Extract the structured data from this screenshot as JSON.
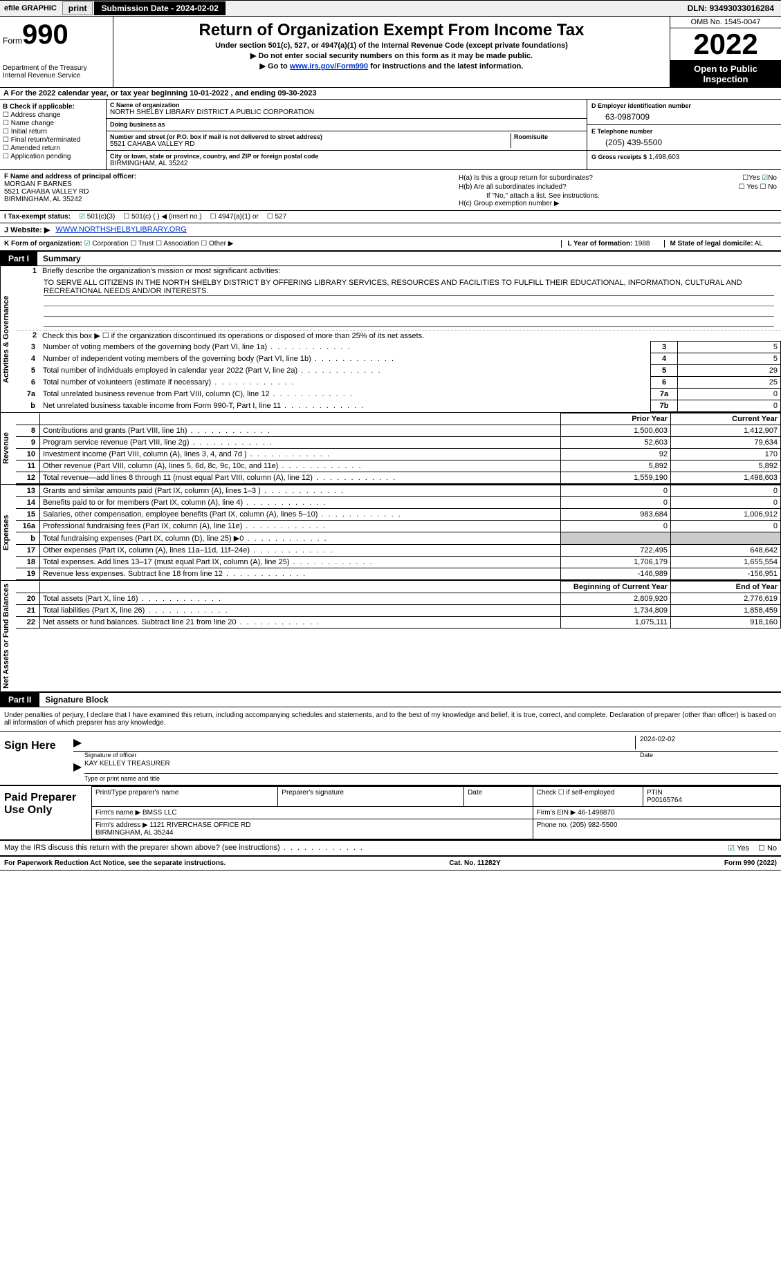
{
  "topbar": {
    "efile_label": "efile GRAPHIC",
    "print_btn": "print",
    "sub_date_label": "Submission Date - 2024-02-02",
    "dln": "DLN: 93493033016284"
  },
  "header": {
    "form_word": "Form",
    "form_number": "990",
    "dept": "Department of the Treasury\nInternal Revenue Service",
    "title": "Return of Organization Exempt From Income Tax",
    "subtitle": "Under section 501(c), 527, or 4947(a)(1) of the Internal Revenue Code (except private foundations)",
    "note1": "▶ Do not enter social security numbers on this form as it may be made public.",
    "note2_pre": "▶ Go to ",
    "note2_link": "www.irs.gov/Form990",
    "note2_post": " for instructions and the latest information.",
    "omb": "OMB No. 1545-0047",
    "year": "2022",
    "open_public": "Open to Public Inspection"
  },
  "row_a": "A For the 2022 calendar year, or tax year beginning 10-01-2022    , and ending 09-30-2023",
  "col_b": {
    "title": "B Check if applicable:",
    "items": [
      "Address change",
      "Name change",
      "Initial return",
      "Final return/terminated",
      "Amended return",
      "Application pending"
    ]
  },
  "col_c": {
    "name_label": "C Name of organization",
    "name": "NORTH SHELBY LIBRARY DISTRICT A PUBLIC CORPORATION",
    "dba_label": "Doing business as",
    "dba": "",
    "street_label": "Number and street (or P.O. box if mail is not delivered to street address)",
    "room_label": "Room/suite",
    "street": "5521 CAHABA VALLEY RD",
    "city_label": "City or town, state or province, country, and ZIP or foreign postal code",
    "city": "BIRMINGHAM, AL  35242"
  },
  "col_d": {
    "ein_label": "D Employer identification number",
    "ein": "63-0987009",
    "phone_label": "E Telephone number",
    "phone": "(205) 439-5500",
    "gross_label": "G Gross receipts $",
    "gross": "1,498,603"
  },
  "row_f": {
    "label": "F Name and address of principal officer:",
    "name": "MORGAN F BARNES",
    "street": "5521 CAHABA VALLEY RD",
    "city": "BIRMINGHAM, AL  35242"
  },
  "row_h": {
    "a_label": "H(a)  Is this a group return for subordinates?",
    "b_label": "H(b)  Are all subordinates included?",
    "b_note": "If \"No,\" attach a list. See instructions.",
    "c_label": "H(c)  Group exemption number ▶",
    "yes": "Yes",
    "no": "No"
  },
  "row_i": {
    "label": "I  Tax-exempt status:",
    "opt1": "501(c)(3)",
    "opt2": "501(c) (  ) ◀ (insert no.)",
    "opt3": "4947(a)(1) or",
    "opt4": "527"
  },
  "row_j": {
    "label": "J  Website: ▶",
    "url": "WWW.NORTHSHELBYLIBRARY.ORG"
  },
  "row_k": {
    "form_label": "K Form of organization:",
    "corp": "Corporation",
    "trust": "Trust",
    "assoc": "Association",
    "other": "Other ▶",
    "year_label": "L Year of formation:",
    "year": "1988",
    "state_label": "M State of legal domicile:",
    "state": "AL"
  },
  "part1": {
    "label": "Part I",
    "title": "Summary"
  },
  "summary": {
    "line1_label": "Briefly describe the organization's mission or most significant activities:",
    "mission": "TO SERVE ALL CITIZENS IN THE NORTH SHELBY DISTRICT BY OFFERING LIBRARY SERVICES, RESOURCES AND FACILITIES TO FULFILL THEIR EDUCATIONAL, INFORMATION, CULTURAL AND RECREATIONAL NEEDS AND/OR INTERESTS.",
    "line2": "Check this box ▶ ☐  if the organization discontinued its operations or disposed of more than 25% of its net assets.",
    "lines_3_7": [
      {
        "n": "3",
        "t": "Number of voting members of the governing body (Part VI, line 1a)",
        "box": "3",
        "v": "5"
      },
      {
        "n": "4",
        "t": "Number of independent voting members of the governing body (Part VI, line 1b)",
        "box": "4",
        "v": "5"
      },
      {
        "n": "5",
        "t": "Total number of individuals employed in calendar year 2022 (Part V, line 2a)",
        "box": "5",
        "v": "29"
      },
      {
        "n": "6",
        "t": "Total number of volunteers (estimate if necessary)",
        "box": "6",
        "v": "25"
      },
      {
        "n": "7a",
        "t": "Total unrelated business revenue from Part VIII, column (C), line 12",
        "box": "7a",
        "v": "0"
      },
      {
        "n": "b",
        "t": "Net unrelated business taxable income from Form 990-T, Part I, line 11",
        "box": "7b",
        "v": "0"
      }
    ],
    "col_prior": "Prior Year",
    "col_current": "Current Year",
    "revenue": [
      {
        "n": "8",
        "t": "Contributions and grants (Part VIII, line 1h)",
        "p": "1,500,603",
        "c": "1,412,907"
      },
      {
        "n": "9",
        "t": "Program service revenue (Part VIII, line 2g)",
        "p": "52,603",
        "c": "79,634"
      },
      {
        "n": "10",
        "t": "Investment income (Part VIII, column (A), lines 3, 4, and 7d )",
        "p": "92",
        "c": "170"
      },
      {
        "n": "11",
        "t": "Other revenue (Part VIII, column (A), lines 5, 6d, 8c, 9c, 10c, and 11e)",
        "p": "5,892",
        "c": "5,892"
      },
      {
        "n": "12",
        "t": "Total revenue—add lines 8 through 11 (must equal Part VIII, column (A), line 12)",
        "p": "1,559,190",
        "c": "1,498,603"
      }
    ],
    "expenses": [
      {
        "n": "13",
        "t": "Grants and similar amounts paid (Part IX, column (A), lines 1–3 )",
        "p": "0",
        "c": "0"
      },
      {
        "n": "14",
        "t": "Benefits paid to or for members (Part IX, column (A), line 4)",
        "p": "0",
        "c": "0"
      },
      {
        "n": "15",
        "t": "Salaries, other compensation, employee benefits (Part IX, column (A), lines 5–10)",
        "p": "983,684",
        "c": "1,006,912"
      },
      {
        "n": "16a",
        "t": "Professional fundraising fees (Part IX, column (A), line 11e)",
        "p": "0",
        "c": "0"
      },
      {
        "n": "b",
        "t": "Total fundraising expenses (Part IX, column (D), line 25) ▶0",
        "p": "",
        "c": "",
        "shaded": true
      },
      {
        "n": "17",
        "t": "Other expenses (Part IX, column (A), lines 11a–11d, 11f–24e)",
        "p": "722,495",
        "c": "648,642"
      },
      {
        "n": "18",
        "t": "Total expenses. Add lines 13–17 (must equal Part IX, column (A), line 25)",
        "p": "1,706,179",
        "c": "1,655,554"
      },
      {
        "n": "19",
        "t": "Revenue less expenses. Subtract line 18 from line 12",
        "p": "-146,989",
        "c": "-156,951"
      }
    ],
    "col_begin": "Beginning of Current Year",
    "col_end": "End of Year",
    "netassets": [
      {
        "n": "20",
        "t": "Total assets (Part X, line 16)",
        "p": "2,809,920",
        "c": "2,776,619"
      },
      {
        "n": "21",
        "t": "Total liabilities (Part X, line 26)",
        "p": "1,734,809",
        "c": "1,858,459"
      },
      {
        "n": "22",
        "t": "Net assets or fund balances. Subtract line 21 from line 20",
        "p": "1,075,111",
        "c": "918,160"
      }
    ],
    "side_ag": "Activities & Governance",
    "side_rev": "Revenue",
    "side_exp": "Expenses",
    "side_na": "Net Assets or Fund Balances"
  },
  "part2": {
    "label": "Part II",
    "title": "Signature Block",
    "declaration": "Under penalties of perjury, I declare that I have examined this return, including accompanying schedules and statements, and to the best of my knowledge and belief, it is true, correct, and complete. Declaration of preparer (other than officer) is based on all information of which preparer has any knowledge."
  },
  "sign": {
    "here": "Sign Here",
    "sig_officer": "Signature of officer",
    "date": "Date",
    "date_val": "2024-02-02",
    "name_title": "KAY KELLEY  TREASURER",
    "name_label": "Type or print name and title"
  },
  "paid": {
    "title": "Paid Preparer Use Only",
    "h_name": "Print/Type preparer's name",
    "h_sig": "Preparer's signature",
    "h_date": "Date",
    "h_check": "Check ☐ if self-employed",
    "h_ptin": "PTIN",
    "ptin": "P00165764",
    "firm_name_lbl": "Firm's name    ▶",
    "firm_name": "BMSS LLC",
    "firm_ein_lbl": "Firm's EIN ▶",
    "firm_ein": "46-1498870",
    "firm_addr_lbl": "Firm's address ▶",
    "firm_addr": "1121 RIVERCHASE OFFICE RD\nBIRMINGHAM, AL  35244",
    "phone_lbl": "Phone no.",
    "phone": "(205) 982-5500"
  },
  "may_irs": {
    "text": "May the IRS discuss this return with the preparer shown above? (see instructions)",
    "yes": "Yes",
    "no": "No"
  },
  "footer": {
    "left": "For Paperwork Reduction Act Notice, see the separate instructions.",
    "mid": "Cat. No. 11282Y",
    "right": "Form 990 (2022)"
  }
}
